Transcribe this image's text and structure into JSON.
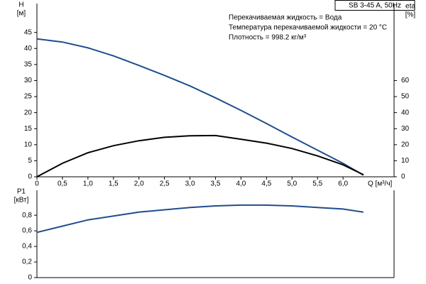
{
  "chart_data": [
    {
      "type": "line",
      "title": "SB 3-45 A, 50Hz",
      "annotations": [
        "Перекачиваемая жидкость = Вода",
        "Температура перекачиваемой жидкости = 20 °C",
        "Плотность = 998.2 кг/м³"
      ],
      "xlabel": "Q [м³/ч]",
      "ylabel": [
        "H",
        "[м]"
      ],
      "y2label": [
        "eta",
        "[%]"
      ],
      "x": [
        0,
        0.5,
        1,
        1.5,
        2,
        2.5,
        3,
        3.5,
        4,
        4.5,
        5,
        5.5,
        6,
        6.4
      ],
      "series": [
        {
          "color": "#1f4e8c",
          "values": [
            43,
            42,
            40.2,
            37.7,
            34.7,
            31.6,
            28.3,
            24.6,
            20.7,
            16.6,
            12.4,
            8.3,
            4.2,
            0.5
          ]
        },
        {
          "color": "#000000",
          "axis": "y2",
          "values": [
            0,
            8.4,
            15,
            19.4,
            22.5,
            24.6,
            25.6,
            25.7,
            23.4,
            21,
            17.6,
            13,
            7.5,
            1.3
          ]
        }
      ],
      "xlim": [
        0,
        7
      ],
      "xticks": [
        0,
        {
          "value": 0.5,
          "label": "0,5"
        },
        {
          "value": 1,
          "label": "1,0"
        },
        {
          "value": 1.5,
          "label": "1,5"
        },
        {
          "value": 2,
          "label": "2,0"
        },
        {
          "value": 2.5,
          "label": "2,5"
        },
        {
          "value": 3,
          "label": "3,0"
        },
        {
          "value": 3.5,
          "label": "3,5"
        },
        {
          "value": 4,
          "label": "4,0"
        },
        {
          "value": 4.5,
          "label": "4,5"
        },
        {
          "value": 5,
          "label": "5,0"
        },
        {
          "value": 5.5,
          "label": "5,5"
        },
        {
          "value": 6,
          "label": "6,0"
        }
      ],
      "ylim": [
        0,
        54
      ],
      "yticks": [
        0,
        5,
        10,
        15,
        20,
        25,
        30,
        35,
        40,
        45
      ],
      "y2lim": [
        0,
        108
      ],
      "y2ticks": [
        0,
        10,
        20,
        30,
        40,
        50,
        60
      ]
    },
    {
      "type": "line",
      "ylabel": [
        "P1",
        "[кВт]"
      ],
      "x": [
        0,
        0.5,
        1,
        1.5,
        2,
        2.5,
        3,
        3.5,
        4,
        4.5,
        5,
        5.5,
        6,
        6.4
      ],
      "series": [
        {
          "color": "#1f4e8c",
          "values": [
            0.58,
            0.66,
            0.74,
            0.79,
            0.84,
            0.87,
            0.9,
            0.92,
            0.93,
            0.93,
            0.92,
            0.9,
            0.88,
            0.84
          ]
        }
      ],
      "xlim": [
        0,
        7
      ],
      "ylim": [
        0,
        1.12
      ],
      "yticks": [
        0,
        {
          "value": 0.2,
          "label": "0,2"
        },
        {
          "value": 0.4,
          "label": "0,4"
        },
        {
          "value": 0.6,
          "label": "0,6"
        },
        {
          "value": 0.8,
          "label": "0,8"
        }
      ]
    }
  ]
}
